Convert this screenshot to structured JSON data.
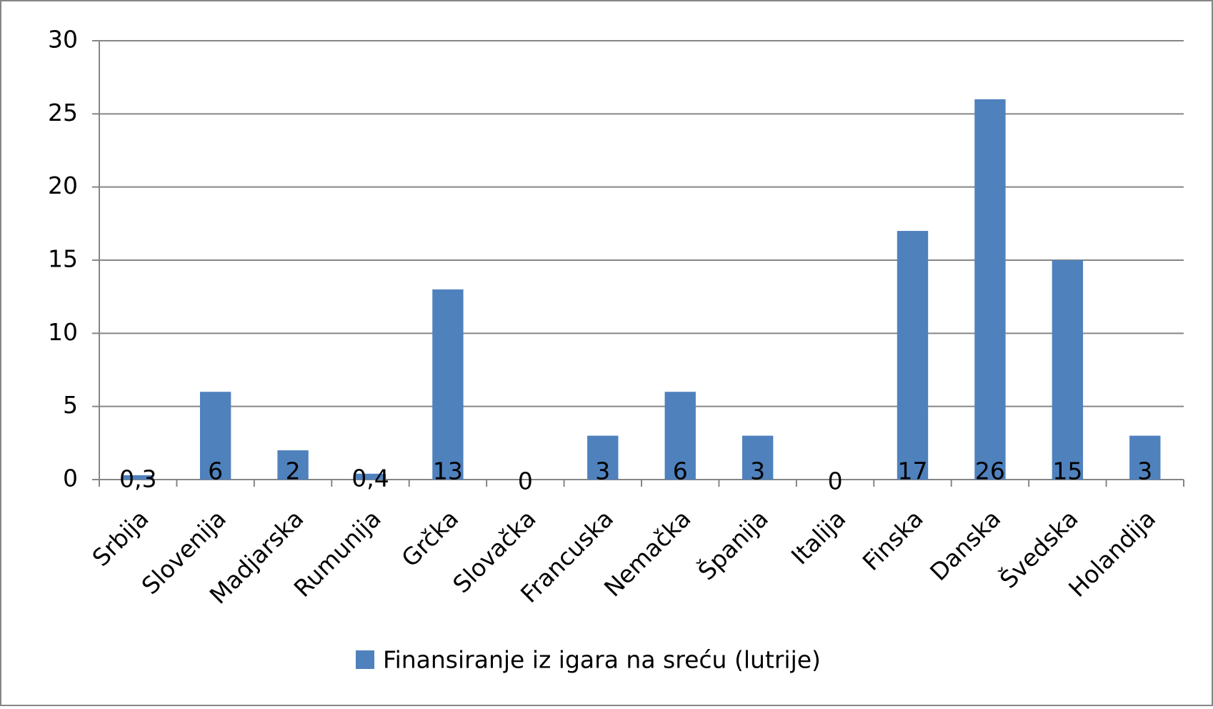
{
  "chart_data": {
    "type": "bar",
    "categories": [
      "Srbija",
      "Slovenija",
      "Madjarska",
      "Rumunija",
      "Grčka",
      "Slovačka",
      "Francuska",
      "Nemačka",
      "Španija",
      "Italija",
      "Finska",
      "Danska",
      "Švedska",
      "Holandija"
    ],
    "series": [
      {
        "name": "Finansiranje iz igara na sreću (lutrije)",
        "color": "#4f81bd",
        "values": [
          0.3,
          6,
          2,
          0.4,
          13,
          0,
          3,
          6,
          3,
          0,
          17,
          26,
          15,
          3
        ],
        "value_labels": [
          "0,3",
          "6",
          "2",
          "0,4",
          "13",
          "0",
          "3",
          "6",
          "3",
          "0",
          "17",
          "26",
          "15",
          "3"
        ]
      }
    ],
    "ylim": [
      0,
      30
    ],
    "yticks": [
      0,
      5,
      10,
      15,
      20,
      25,
      30
    ],
    "grid": true,
    "legend": "bottom"
  }
}
